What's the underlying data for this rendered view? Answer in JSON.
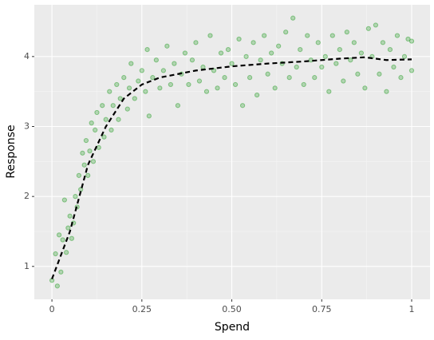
{
  "chart_data": {
    "type": "scatter",
    "x_label": "Spend",
    "y_label": "Response",
    "xlim": [
      -0.049,
      1.051
    ],
    "ylim": [
      0.53,
      4.74
    ],
    "xticks": [
      0,
      0.25,
      {
        "value": 0.5,
        "label": "0.50"
      },
      0.75,
      1
    ],
    "yticks": [
      1,
      2,
      3,
      4
    ],
    "grid": true,
    "points": {
      "color": "#2ca02c",
      "x": [
        0,
        0.01,
        0.015,
        0.02,
        0.025,
        0.03,
        0.035,
        0.04,
        0.045,
        0.05,
        0.055,
        0.06,
        0.065,
        0.07,
        0.075,
        0.08,
        0.085,
        0.09,
        0.095,
        0.1,
        0.105,
        0.11,
        0.115,
        0.12,
        0.125,
        0.13,
        0.14,
        0.145,
        0.15,
        0.16,
        0.165,
        0.17,
        0.18,
        0.185,
        0.19,
        0.2,
        0.21,
        0.215,
        0.22,
        0.23,
        0.24,
        0.25,
        0.26,
        0.265,
        0.27,
        0.28,
        0.29,
        0.3,
        0.31,
        0.32,
        0.33,
        0.34,
        0.35,
        0.36,
        0.37,
        0.38,
        0.39,
        0.4,
        0.41,
        0.42,
        0.43,
        0.44,
        0.45,
        0.46,
        0.47,
        0.48,
        0.49,
        0.5,
        0.51,
        0.52,
        0.53,
        0.54,
        0.55,
        0.56,
        0.57,
        0.58,
        0.59,
        0.6,
        0.61,
        0.62,
        0.63,
        0.64,
        0.65,
        0.66,
        0.67,
        0.68,
        0.69,
        0.7,
        0.71,
        0.72,
        0.73,
        0.74,
        0.75,
        0.76,
        0.77,
        0.78,
        0.79,
        0.8,
        0.81,
        0.82,
        0.83,
        0.84,
        0.85,
        0.86,
        0.87,
        0.88,
        0.89,
        0.9,
        0.91,
        0.92,
        0.93,
        0.94,
        0.95,
        0.96,
        0.97,
        0.98,
        0.99,
        1,
        1
      ],
      "y": [
        0.8,
        1.18,
        0.72,
        1.45,
        0.92,
        1.38,
        1.95,
        1.2,
        1.55,
        1.72,
        1.4,
        1.62,
        2.0,
        1.85,
        2.3,
        2.1,
        2.62,
        2.45,
        2.8,
        2.3,
        2.65,
        3.05,
        2.5,
        2.95,
        3.2,
        2.7,
        3.3,
        2.85,
        3.1,
        3.5,
        2.95,
        3.3,
        3.6,
        3.1,
        3.4,
        3.7,
        3.25,
        3.55,
        3.9,
        3.4,
        3.65,
        3.8,
        3.5,
        4.1,
        3.15,
        3.7,
        3.95,
        3.55,
        3.8,
        4.15,
        3.6,
        3.9,
        3.3,
        3.75,
        4.05,
        3.6,
        3.95,
        4.2,
        3.65,
        3.85,
        3.5,
        4.3,
        3.8,
        3.55,
        4.05,
        3.7,
        4.1,
        3.9,
        3.6,
        4.25,
        3.3,
        4.0,
        3.7,
        4.2,
        3.45,
        3.95,
        4.3,
        3.75,
        4.05,
        3.55,
        4.15,
        3.9,
        4.35,
        3.7,
        4.55,
        3.85,
        4.1,
        3.6,
        4.3,
        3.95,
        3.7,
        4.2,
        3.85,
        4.0,
        3.5,
        4.3,
        3.9,
        4.1,
        3.65,
        4.35,
        3.95,
        4.2,
        3.75,
        4.05,
        3.55,
        4.4,
        4.0,
        4.45,
        3.75,
        4.2,
        3.5,
        4.1,
        3.85,
        4.3,
        3.7,
        4.0,
        4.25,
        3.8,
        4.22
      ]
    },
    "fit": {
      "color": "#000000",
      "x": [
        0,
        0.05,
        0.1,
        0.15,
        0.2,
        0.25,
        0.3,
        0.4,
        0.5,
        0.6,
        0.7,
        0.8,
        0.87,
        0.93,
        1
      ],
      "y": [
        0.82,
        1.5,
        2.45,
        3.0,
        3.4,
        3.6,
        3.7,
        3.8,
        3.86,
        3.9,
        3.93,
        3.97,
        3.99,
        3.95,
        3.96
      ]
    }
  }
}
